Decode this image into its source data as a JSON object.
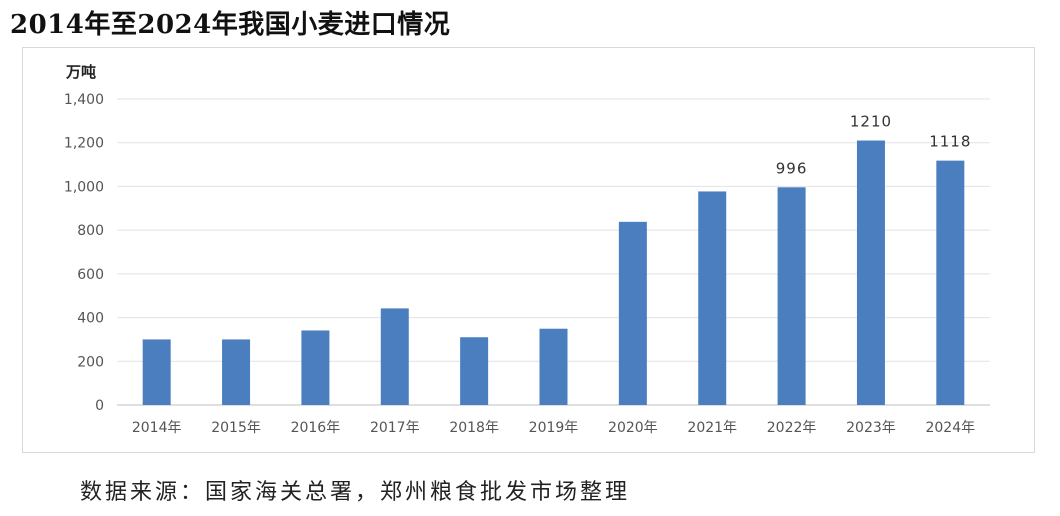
{
  "title": "2014年至2024年我国小麦进口情况",
  "source": "数据来源：国家海关总署，郑州粮食批发市场整理",
  "chart_data": {
    "type": "bar",
    "ylabel": "万吨",
    "ylim": [
      0,
      1400
    ],
    "yticks": [
      0,
      200,
      400,
      600,
      800,
      1000,
      1200,
      1400
    ],
    "ytick_labels": [
      "0",
      "200",
      "400",
      "600",
      "800",
      "1,000",
      "1,200",
      "1,400"
    ],
    "categories": [
      "2014年",
      "2015年",
      "2016年",
      "2017年",
      "2018年",
      "2019年",
      "2020年",
      "2021年",
      "2022年",
      "2023年",
      "2024年"
    ],
    "values": [
      300,
      300,
      341,
      442,
      310,
      349,
      838,
      977,
      996,
      1210,
      1118
    ],
    "data_labels": [
      "",
      "",
      "",
      "",
      "",
      "",
      "",
      "",
      "996",
      "1210",
      "1118"
    ],
    "bar_color": "#4a7ebf",
    "grid": true
  }
}
